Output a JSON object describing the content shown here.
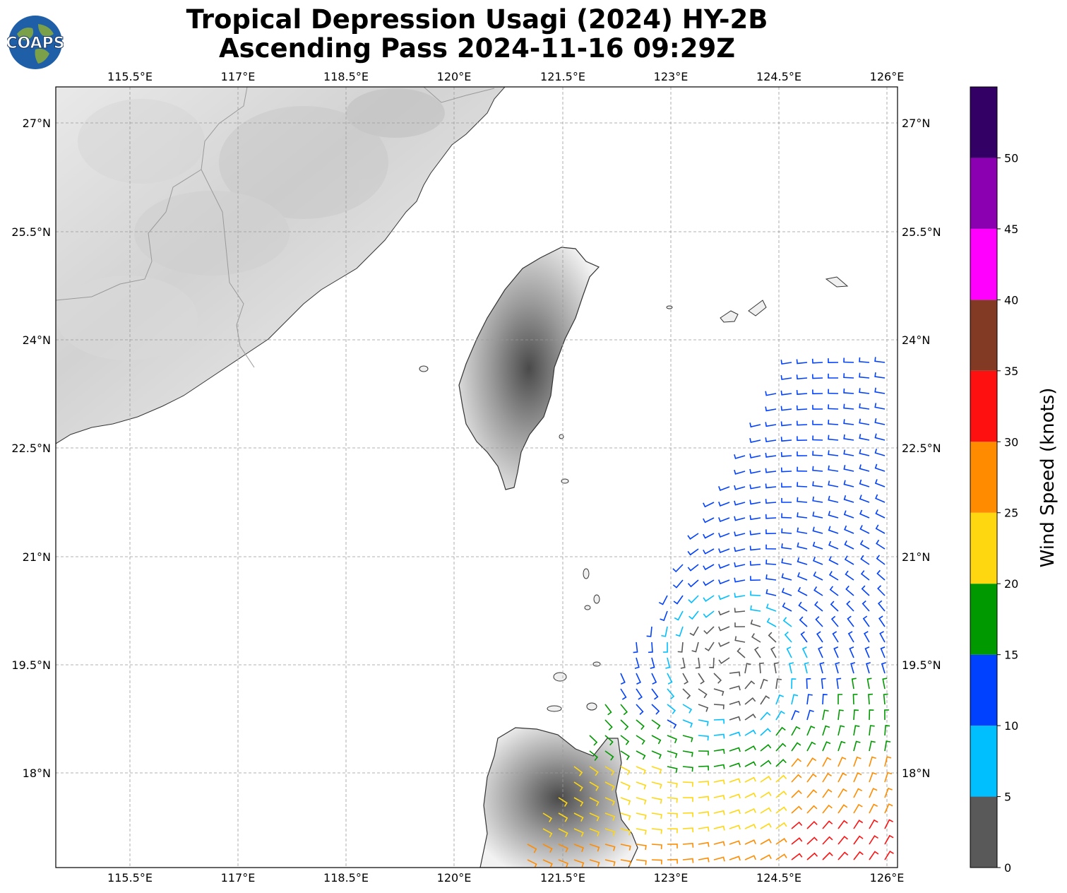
{
  "title": {
    "line1": "Tropical Depression Usagi (2024) HY-2B",
    "line2": "Ascending Pass 2024-11-16 09:29Z"
  },
  "logo": {
    "text": "COAPS",
    "icon": "globe-icon"
  },
  "chart_data": {
    "type": "wind-barb-map",
    "lon_ticks": [
      "115.5°E",
      "117°E",
      "118.5°E",
      "120°E",
      "121.5°E",
      "123°E",
      "124.5°E",
      "126°E"
    ],
    "lat_ticks": [
      "27°N",
      "25.5°N",
      "24°N",
      "22.5°N",
      "21°N",
      "19.5°N",
      "18°N"
    ],
    "lon_range": [
      114.45,
      126.1
    ],
    "lat_range": [
      16.7,
      27.5
    ],
    "grid": true,
    "colorbar": {
      "label": "Wind Speed (knots)",
      "ticks": [
        "0",
        "5",
        "10",
        "15",
        "20",
        "25",
        "30",
        "35",
        "40",
        "45",
        "50"
      ],
      "max": 55,
      "bins": [
        {
          "from": 0,
          "to": 5,
          "color": "#595959"
        },
        {
          "from": 5,
          "to": 10,
          "color": "#00bfff"
        },
        {
          "from": 10,
          "to": 15,
          "color": "#0040ff"
        },
        {
          "from": 15,
          "to": 20,
          "color": "#009900"
        },
        {
          "from": 20,
          "to": 25,
          "color": "#ffd710"
        },
        {
          "from": 25,
          "to": 30,
          "color": "#ff8c00"
        },
        {
          "from": 30,
          "to": 35,
          "color": "#ff1010"
        },
        {
          "from": 35,
          "to": 40,
          "color": "#833a24"
        },
        {
          "from": 40,
          "to": 45,
          "color": "#ff00ff"
        },
        {
          "from": 45,
          "to": 50,
          "color": "#8b00b0"
        },
        {
          "from": 50,
          "to": 55,
          "color": "#330066"
        }
      ]
    },
    "storm_center": {
      "lon": 123.8,
      "lat": 19.5
    }
  }
}
